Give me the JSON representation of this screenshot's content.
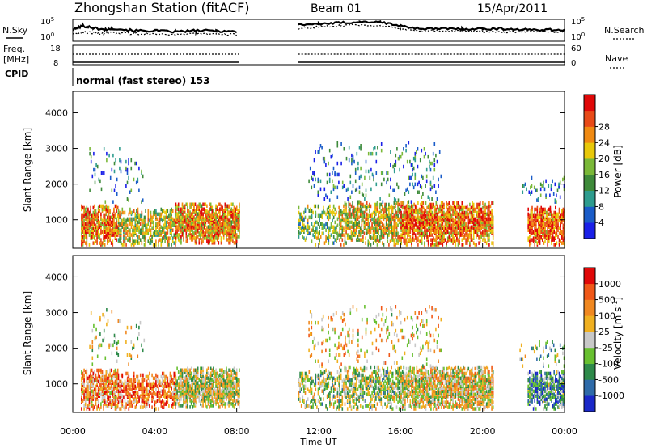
{
  "header": {
    "station": "Zhongshan Station (fitACF)",
    "beam": "Beam 01",
    "date": "15/Apr/2011"
  },
  "left_labels": {
    "nsky": "N.Sky",
    "freq": "Freq.",
    "freq_unit": "[MHz]",
    "cpid": "CPID"
  },
  "right_labels": {
    "nsearch": "N.Search",
    "nave": "Nave"
  },
  "cpid_text": "normal (fast stereo) 153",
  "chart_data": [
    {
      "type": "line",
      "name": "noise_panel",
      "left_ticks": [
        "10^5",
        "10^0"
      ],
      "right_ticks": [
        "10^5",
        "10^0"
      ],
      "gap_hours": [
        8.1,
        11.0
      ],
      "x": [
        0,
        0.5,
        1,
        1.5,
        2,
        3,
        4,
        5,
        6,
        7,
        8,
        11,
        12,
        13,
        14,
        15,
        16,
        17,
        18,
        19,
        20,
        21,
        22,
        23,
        24
      ],
      "series": [
        {
          "name": "N.Sky",
          "values": [
            0.55,
            0.75,
            0.65,
            0.55,
            0.62,
            0.5,
            0.5,
            0.45,
            0.5,
            0.5,
            0.45,
            0.82,
            0.85,
            0.9,
            0.95,
            0.95,
            0.75,
            0.6,
            0.6,
            0.6,
            0.6,
            0.6,
            0.55,
            0.55,
            0.55
          ]
        },
        {
          "name": "N.Search",
          "values": [
            0.35,
            0.4,
            0.4,
            0.35,
            0.4,
            0.35,
            0.35,
            0.3,
            0.35,
            0.3,
            0.3,
            0.62,
            0.7,
            0.75,
            0.8,
            0.78,
            0.6,
            0.5,
            0.5,
            0.5,
            0.45,
            0.45,
            0.45,
            0.45,
            0.45
          ]
        }
      ]
    },
    {
      "type": "line",
      "name": "freq_nave_panel",
      "left_ticks": [
        "18",
        "8"
      ],
      "right_ticks": [
        "60",
        "0"
      ],
      "gap_hours": [
        8.1,
        11.0
      ],
      "series": [
        {
          "name": "Freq.",
          "constant": 10
        },
        {
          "name": "Nave",
          "constant": 40
        }
      ]
    },
    {
      "type": "heatmap",
      "name": "power",
      "xlabel": "",
      "ylabel": "Slant Range [km]",
      "yticks": [
        "1000",
        "2000",
        "3000",
        "4000"
      ],
      "ylim": [
        200,
        4600
      ],
      "xlim": [
        0,
        24
      ],
      "colorbar": {
        "label": "Power [dB]",
        "ticks": [
          "4",
          "8",
          "12",
          "16",
          "20",
          "24",
          "28"
        ],
        "colors": [
          "#1a20e8",
          "#1a5cc8",
          "#2e9c8e",
          "#3e8a3a",
          "#7ab838",
          "#e8c80a",
          "#f08a12",
          "#e84a18",
          "#e00808"
        ]
      },
      "seed": 17,
      "blobs": [
        {
          "h0": 0.4,
          "h1": 2.2,
          "r0": 300,
          "r1": 1400,
          "level": 0.75,
          "density": 0.65
        },
        {
          "h0": 2.2,
          "h1": 5.0,
          "r0": 300,
          "r1": 1300,
          "level": 0.55,
          "density": 0.5
        },
        {
          "h0": 5.0,
          "h1": 8.1,
          "r0": 350,
          "r1": 1450,
          "level": 0.7,
          "density": 0.72
        },
        {
          "h0": 11.0,
          "h1": 13.0,
          "r0": 300,
          "r1": 1400,
          "level": 0.45,
          "density": 0.3
        },
        {
          "h0": 13.0,
          "h1": 16.0,
          "r0": 300,
          "r1": 1500,
          "level": 0.6,
          "density": 0.5
        },
        {
          "h0": 16.0,
          "h1": 20.5,
          "r0": 300,
          "r1": 1500,
          "level": 0.75,
          "density": 0.72
        },
        {
          "h0": 22.2,
          "h1": 24.0,
          "r0": 300,
          "r1": 1350,
          "level": 0.8,
          "density": 0.65
        },
        {
          "h0": 11.5,
          "h1": 18.0,
          "r0": 1500,
          "r1": 3200,
          "level": 0.25,
          "density": 0.08
        },
        {
          "h0": 0.8,
          "h1": 3.5,
          "r0": 1500,
          "r1": 3100,
          "level": 0.25,
          "density": 0.06
        },
        {
          "h0": 21.8,
          "h1": 24.0,
          "r0": 1500,
          "r1": 2200,
          "level": 0.3,
          "density": 0.12
        }
      ]
    },
    {
      "type": "heatmap",
      "name": "velocity",
      "xlabel": "Time UT",
      "ylabel": "Slant Range [km]",
      "xticks": [
        "00:00",
        "04:00",
        "08:00",
        "12:00",
        "16:00",
        "20:00",
        "00:00"
      ],
      "yticks": [
        "1000",
        "2000",
        "3000",
        "4000"
      ],
      "ylim": [
        200,
        4600
      ],
      "xlim": [
        0,
        24
      ],
      "colorbar": {
        "label": "Velocity [m s^-1]",
        "ticks": [
          "1000",
          "500",
          "100",
          "25",
          "-25",
          "-100",
          "-500",
          "-1000"
        ],
        "colors": [
          "#1a28c8",
          "#2e6aa8",
          "#2e8a4a",
          "#68c030",
          "#c8c8c8",
          "#f0b020",
          "#f08820",
          "#f05818",
          "#e00808"
        ]
      },
      "seed": 29,
      "blobs": [
        {
          "h0": 0.4,
          "h1": 2.2,
          "r0": 300,
          "r1": 1400,
          "level": 0.7,
          "density": 0.65
        },
        {
          "h0": 2.2,
          "h1": 5.0,
          "r0": 300,
          "r1": 1300,
          "level": 0.75,
          "density": 0.5
        },
        {
          "h0": 5.0,
          "h1": 8.1,
          "r0": 350,
          "r1": 1450,
          "level": 0.5,
          "density": 0.72
        },
        {
          "h0": 11.0,
          "h1": 13.0,
          "r0": 300,
          "r1": 1400,
          "level": 0.45,
          "density": 0.3
        },
        {
          "h0": 13.0,
          "h1": 16.0,
          "r0": 300,
          "r1": 1500,
          "level": 0.45,
          "density": 0.5
        },
        {
          "h0": 16.0,
          "h1": 20.5,
          "r0": 300,
          "r1": 1500,
          "level": 0.55,
          "density": 0.72
        },
        {
          "h0": 22.2,
          "h1": 24.0,
          "r0": 300,
          "r1": 1350,
          "level": 0.3,
          "density": 0.65
        },
        {
          "h0": 11.5,
          "h1": 18.0,
          "r0": 1500,
          "r1": 3200,
          "level": 0.6,
          "density": 0.08
        },
        {
          "h0": 0.8,
          "h1": 3.5,
          "r0": 1500,
          "r1": 3100,
          "level": 0.5,
          "density": 0.06
        },
        {
          "h0": 21.8,
          "h1": 24.0,
          "r0": 1500,
          "r1": 2200,
          "level": 0.4,
          "density": 0.12
        }
      ]
    }
  ]
}
